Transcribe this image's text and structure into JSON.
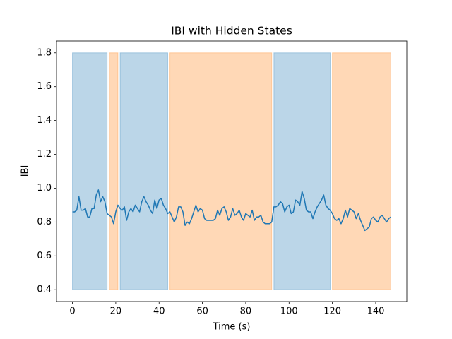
{
  "chart_data": {
    "type": "line",
    "title": "IBI with Hidden States",
    "x_label": "Time (s)",
    "y_label": "IBI",
    "x": [
      0,
      1,
      2,
      3,
      4,
      5,
      6,
      7,
      8,
      9,
      10,
      11,
      12,
      13,
      14,
      15,
      16,
      17,
      18,
      19,
      20,
      21,
      22,
      23,
      24,
      25,
      26,
      27,
      28,
      29,
      30,
      31,
      32,
      33,
      34,
      35,
      36,
      37,
      38,
      39,
      40,
      41,
      42,
      43,
      44,
      45,
      46,
      47,
      48,
      49,
      50,
      51,
      52,
      53,
      54,
      55,
      56,
      57,
      58,
      59,
      60,
      61,
      62,
      63,
      64,
      65,
      66,
      67,
      68,
      69,
      70,
      71,
      72,
      73,
      74,
      75,
      76,
      77,
      78,
      79,
      80,
      81,
      82,
      83,
      84,
      85,
      86,
      87,
      88,
      89,
      90,
      91,
      92,
      93,
      94,
      95,
      96,
      97,
      98,
      99,
      100,
      101,
      102,
      103,
      104,
      105,
      106,
      107,
      108,
      109,
      110,
      111,
      112,
      113,
      114,
      115,
      116,
      117,
      118,
      119,
      120,
      121,
      122,
      123,
      124,
      125,
      126,
      127,
      128,
      129,
      130,
      131,
      132,
      133,
      134,
      135,
      136,
      137,
      138,
      139,
      140,
      141,
      142,
      143,
      144,
      145,
      146,
      147
    ],
    "values": [
      0.86,
      0.86,
      0.87,
      0.95,
      0.87,
      0.87,
      0.88,
      0.83,
      0.83,
      0.88,
      0.88,
      0.96,
      0.99,
      0.92,
      0.95,
      0.92,
      0.85,
      0.84,
      0.83,
      0.79,
      0.86,
      0.9,
      0.88,
      0.87,
      0.89,
      0.81,
      0.86,
      0.88,
      0.86,
      0.9,
      0.88,
      0.86,
      0.92,
      0.95,
      0.92,
      0.9,
      0.87,
      0.85,
      0.93,
      0.88,
      0.93,
      0.94,
      0.9,
      0.88,
      0.85,
      0.86,
      0.83,
      0.8,
      0.83,
      0.89,
      0.89,
      0.86,
      0.78,
      0.8,
      0.79,
      0.82,
      0.86,
      0.9,
      0.86,
      0.88,
      0.87,
      0.82,
      0.81,
      0.81,
      0.81,
      0.81,
      0.82,
      0.87,
      0.84,
      0.88,
      0.89,
      0.86,
      0.81,
      0.83,
      0.88,
      0.84,
      0.85,
      0.87,
      0.83,
      0.81,
      0.85,
      0.84,
      0.83,
      0.87,
      0.81,
      0.83,
      0.83,
      0.84,
      0.8,
      0.79,
      0.79,
      0.79,
      0.8,
      0.89,
      0.89,
      0.9,
      0.92,
      0.91,
      0.86,
      0.89,
      0.9,
      0.85,
      0.86,
      0.93,
      0.92,
      0.9,
      0.98,
      0.94,
      0.87,
      0.86,
      0.86,
      0.82,
      0.86,
      0.89,
      0.91,
      0.93,
      0.96,
      0.9,
      0.88,
      0.87,
      0.85,
      0.82,
      0.81,
      0.82,
      0.79,
      0.82,
      0.87,
      0.83,
      0.88,
      0.87,
      0.86,
      0.82,
      0.85,
      0.81,
      0.78,
      0.75,
      0.76,
      0.77,
      0.82,
      0.83,
      0.81,
      0.8,
      0.83,
      0.84,
      0.82,
      0.8,
      0.82,
      0.83
    ],
    "color": "#1f77b4",
    "region_y": [
      0.4,
      1.8
    ],
    "regions": [
      {
        "x0": 0,
        "x1": 16,
        "color": "#1f77b4"
      },
      {
        "x0": 17,
        "x1": 21,
        "color": "#ff7f0e"
      },
      {
        "x0": 22,
        "x1": 44,
        "color": "#1f77b4"
      },
      {
        "x0": 45,
        "x1": 92,
        "color": "#ff7f0e"
      },
      {
        "x0": 93,
        "x1": 119,
        "color": "#1f77b4"
      },
      {
        "x0": 120,
        "x1": 147,
        "color": "#ff7f0e"
      }
    ],
    "xlim": [
      -7.35,
      154.35
    ],
    "xticks": [
      0,
      20,
      40,
      60,
      80,
      100,
      120,
      140
    ],
    "ylim": [
      0.33,
      1.87
    ],
    "yticks": [
      0.4,
      0.6,
      0.8,
      {
        "value": 1,
        "label": "1.0"
      },
      1.2,
      1.4,
      1.6,
      1.8
    ]
  }
}
